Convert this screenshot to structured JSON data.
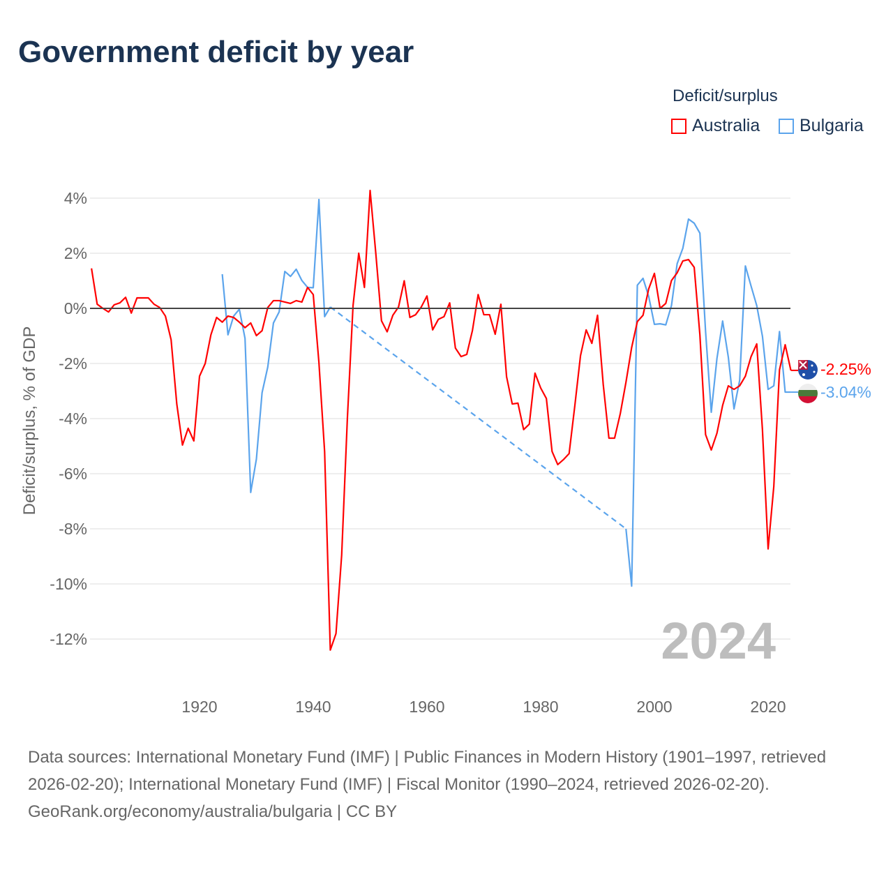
{
  "title": "Government deficit by year",
  "legend": {
    "title": "Deficit/surplus",
    "items": [
      {
        "name": "Australia",
        "color": "#ff0000"
      },
      {
        "name": "Bulgaria",
        "color": "#5ba4ec"
      }
    ]
  },
  "watermark_year": "2024",
  "end_labels": [
    {
      "country": "Australia",
      "value": "-2.25%",
      "color": "#ff0000"
    },
    {
      "country": "Bulgaria",
      "value": "-3.04%",
      "color": "#5ba4ec"
    }
  ],
  "source": {
    "line1": "Data sources: International Monetary Fund (IMF) | Public Finances in Modern History (1901–1997, retrieved 2026-02-20); International Monetary Fund (IMF) | Fiscal Monitor (1990–2024, retrieved 2026-02-20).",
    "line2": "GeoRank.org/economy/australia/bulgaria | CC BY"
  },
  "chart_data": {
    "type": "line",
    "title": "Government deficit by year",
    "xlabel": "",
    "ylabel": "Deficit/surplus, % of GDP",
    "xlim": [
      1901,
      2024
    ],
    "ylim": [
      -12,
      4
    ],
    "xticks": [
      1920,
      1940,
      1960,
      1980,
      2000,
      2020
    ],
    "yticks": [
      4,
      2,
      0,
      -2,
      -4,
      -6,
      -8,
      -10,
      -12
    ],
    "ytick_labels": [
      "4%",
      "2%",
      "0%",
      "-2%",
      "-4%",
      "-6%",
      "-8%",
      "-10%",
      "-12%"
    ],
    "grid": true,
    "legend_position": "top-right",
    "series": [
      {
        "name": "Australia",
        "color": "#ff0000",
        "start_year": 1901,
        "values": [
          1.45,
          0.15,
          0.0,
          -0.13,
          0.13,
          0.2,
          0.4,
          -0.17,
          0.38,
          0.38,
          0.38,
          0.15,
          0.03,
          -0.28,
          -1.14,
          -3.47,
          -4.96,
          -4.35,
          -4.81,
          -2.46,
          -2.0,
          -0.96,
          -0.33,
          -0.5,
          -0.28,
          -0.33,
          -0.5,
          -0.7,
          -0.53,
          -0.99,
          -0.81,
          0.03,
          0.28,
          0.28,
          0.23,
          0.18,
          0.28,
          0.23,
          0.76,
          0.5,
          -1.97,
          -5.2,
          -12.4,
          -11.8,
          -8.95,
          -4.0,
          0.1,
          2.0,
          0.76,
          4.28,
          2.0,
          -0.45,
          -0.85,
          -0.25,
          0.05,
          1.0,
          -0.33,
          -0.23,
          0.05,
          0.45,
          -0.78,
          -0.4,
          -0.3,
          0.2,
          -1.44,
          -1.75,
          -1.67,
          -0.8,
          0.5,
          -0.23,
          -0.23,
          -0.94,
          0.15,
          -2.48,
          -3.47,
          -3.44,
          -4.4,
          -4.2,
          -2.35,
          -2.89,
          -3.27,
          -5.19,
          -5.67,
          -5.49,
          -5.27,
          -3.54,
          -1.72,
          -0.78,
          -1.27,
          -0.25,
          -2.76,
          -4.71,
          -4.71,
          -3.82,
          -2.68,
          -1.42,
          -0.48,
          -0.25,
          0.71,
          1.27,
          0.0,
          0.18,
          1.01,
          1.29,
          1.72,
          1.77,
          1.49,
          -0.96,
          -4.58,
          -5.14,
          -4.53,
          -3.52,
          -2.81,
          -2.94,
          -2.81,
          -2.46,
          -1.75,
          -1.29,
          -4.4,
          -8.73,
          -6.46,
          -2.23,
          -1.32,
          -2.25
        ]
      },
      {
        "name": "Bulgaria",
        "color": "#5ba4ec",
        "segments": [
          {
            "start_year": 1924,
            "values": [
              1.24,
              -0.96,
              -0.28,
              -0.03,
              -1.09,
              -6.68,
              -5.47,
              -3.06,
              -2.13,
              -0.53,
              -0.13,
              1.34,
              1.16,
              1.42,
              1.01,
              0.76,
              0.75,
              3.95,
              -0.3,
              0.05
            ]
          },
          {
            "start_year": 1995,
            "values": [
              -8.0,
              -10.08,
              0.84,
              1.09,
              0.43,
              -0.58,
              -0.56,
              -0.6,
              0.1,
              1.62,
              2.18,
              3.24,
              3.09,
              2.73,
              -0.84,
              -3.77,
              -1.82,
              -0.46,
              -1.77,
              -3.65,
              -2.61,
              1.54,
              0.81,
              0.1,
              -1.01,
              -2.94,
              -2.81,
              -0.84,
              -3.04,
              -3.04
            ]
          }
        ]
      }
    ]
  }
}
